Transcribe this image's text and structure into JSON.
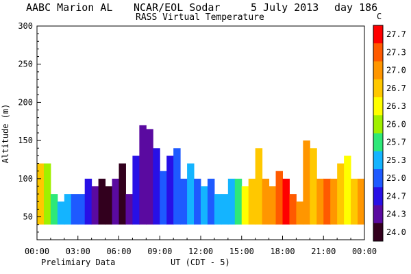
{
  "header": {
    "left": "AABC Marion AL",
    "center": "NCAR/EOL Sodar",
    "date": "5 July 2013",
    "day": "day 186",
    "subtitle": "RASS Virtual Temperature"
  },
  "footer": {
    "note": "Prelimiary Data",
    "xlabel": "UT  (CDT - 5)"
  },
  "chart_data": {
    "type": "heatmap",
    "title": "RASS Virtual Temperature",
    "xlabel": "UT  (CDT - 5)",
    "ylabel": "Altitude (m)",
    "xlim": [
      "00:00",
      "24:00"
    ],
    "ylim": [
      20,
      300
    ],
    "x_ticks": [
      "00:00",
      "03:00",
      "06:00",
      "09:00",
      "12:00",
      "15:00",
      "18:00",
      "21:00",
      "00:00"
    ],
    "y_ticks": [
      50,
      100,
      150,
      200,
      250,
      300
    ],
    "colorbar": {
      "unit": "C",
      "ticks": [
        "27.7",
        "27.3",
        "27.0",
        "26.7",
        "26.3",
        "26.0",
        "25.7",
        "25.3",
        "25.0",
        "24.7",
        "24.3",
        "24.0"
      ],
      "colors": [
        "#ff0000",
        "#ff5a00",
        "#ff9600",
        "#ffc800",
        "#ffff00",
        "#a0f000",
        "#2ee878",
        "#14b4ff",
        "#1e5aff",
        "#2810e6",
        "#5a0aa0",
        "#32001e"
      ]
    },
    "series": [
      {
        "hour": 0.0,
        "top": 120,
        "temp": 26.7
      },
      {
        "hour": 0.5,
        "top": 120,
        "temp": 26.0
      },
      {
        "hour": 1.0,
        "top": 80,
        "temp": 25.7
      },
      {
        "hour": 1.5,
        "top": 70,
        "temp": 25.3
      },
      {
        "hour": 2.0,
        "top": 80,
        "temp": 25.3
      },
      {
        "hour": 2.5,
        "top": 80,
        "temp": 25.0
      },
      {
        "hour": 3.0,
        "top": 80,
        "temp": 25.0
      },
      {
        "hour": 3.5,
        "top": 100,
        "temp": 24.7
      },
      {
        "hour": 4.0,
        "top": 90,
        "temp": 24.3
      },
      {
        "hour": 4.5,
        "top": 100,
        "temp": 24.0
      },
      {
        "hour": 5.0,
        "top": 90,
        "temp": 24.0
      },
      {
        "hour": 5.5,
        "top": 100,
        "temp": 24.3
      },
      {
        "hour": 6.0,
        "top": 120,
        "temp": 24.0
      },
      {
        "hour": 6.5,
        "top": 80,
        "temp": 24.3
      },
      {
        "hour": 7.0,
        "top": 130,
        "temp": 24.7
      },
      {
        "hour": 7.5,
        "top": 170,
        "temp": 24.3
      },
      {
        "hour": 8.0,
        "top": 165,
        "temp": 24.3
      },
      {
        "hour": 8.5,
        "top": 140,
        "temp": 24.7
      },
      {
        "hour": 9.0,
        "top": 110,
        "temp": 25.0
      },
      {
        "hour": 9.5,
        "top": 130,
        "temp": 24.7
      },
      {
        "hour": 10.0,
        "top": 140,
        "temp": 25.0
      },
      {
        "hour": 10.5,
        "top": 100,
        "temp": 25.0
      },
      {
        "hour": 11.0,
        "top": 120,
        "temp": 25.3
      },
      {
        "hour": 11.5,
        "top": 100,
        "temp": 25.0
      },
      {
        "hour": 12.0,
        "top": 90,
        "temp": 25.3
      },
      {
        "hour": 12.5,
        "top": 100,
        "temp": 25.0
      },
      {
        "hour": 13.0,
        "top": 80,
        "temp": 25.3
      },
      {
        "hour": 13.5,
        "top": 80,
        "temp": 25.3
      },
      {
        "hour": 14.0,
        "top": 100,
        "temp": 25.3
      },
      {
        "hour": 14.5,
        "top": 100,
        "temp": 25.7
      },
      {
        "hour": 15.0,
        "top": 90,
        "temp": 26.3
      },
      {
        "hour": 15.5,
        "top": 100,
        "temp": 26.7
      },
      {
        "hour": 16.0,
        "top": 140,
        "temp": 26.7
      },
      {
        "hour": 16.5,
        "top": 100,
        "temp": 27.0
      },
      {
        "hour": 17.0,
        "top": 90,
        "temp": 27.0
      },
      {
        "hour": 17.5,
        "top": 110,
        "temp": 27.3
      },
      {
        "hour": 18.0,
        "top": 100,
        "temp": 27.7
      },
      {
        "hour": 18.5,
        "top": 80,
        "temp": 27.3
      },
      {
        "hour": 19.0,
        "top": 70,
        "temp": 27.0
      },
      {
        "hour": 19.5,
        "top": 150,
        "temp": 27.0
      },
      {
        "hour": 20.0,
        "top": 140,
        "temp": 26.7
      },
      {
        "hour": 20.5,
        "top": 100,
        "temp": 27.0
      },
      {
        "hour": 21.0,
        "top": 100,
        "temp": 27.3
      },
      {
        "hour": 21.5,
        "top": 100,
        "temp": 27.0
      },
      {
        "hour": 22.0,
        "top": 120,
        "temp": 26.7
      },
      {
        "hour": 22.5,
        "top": 130,
        "temp": 26.3
      },
      {
        "hour": 23.0,
        "top": 100,
        "temp": 26.7
      },
      {
        "hour": 23.5,
        "top": 100,
        "temp": 27.0
      }
    ]
  }
}
